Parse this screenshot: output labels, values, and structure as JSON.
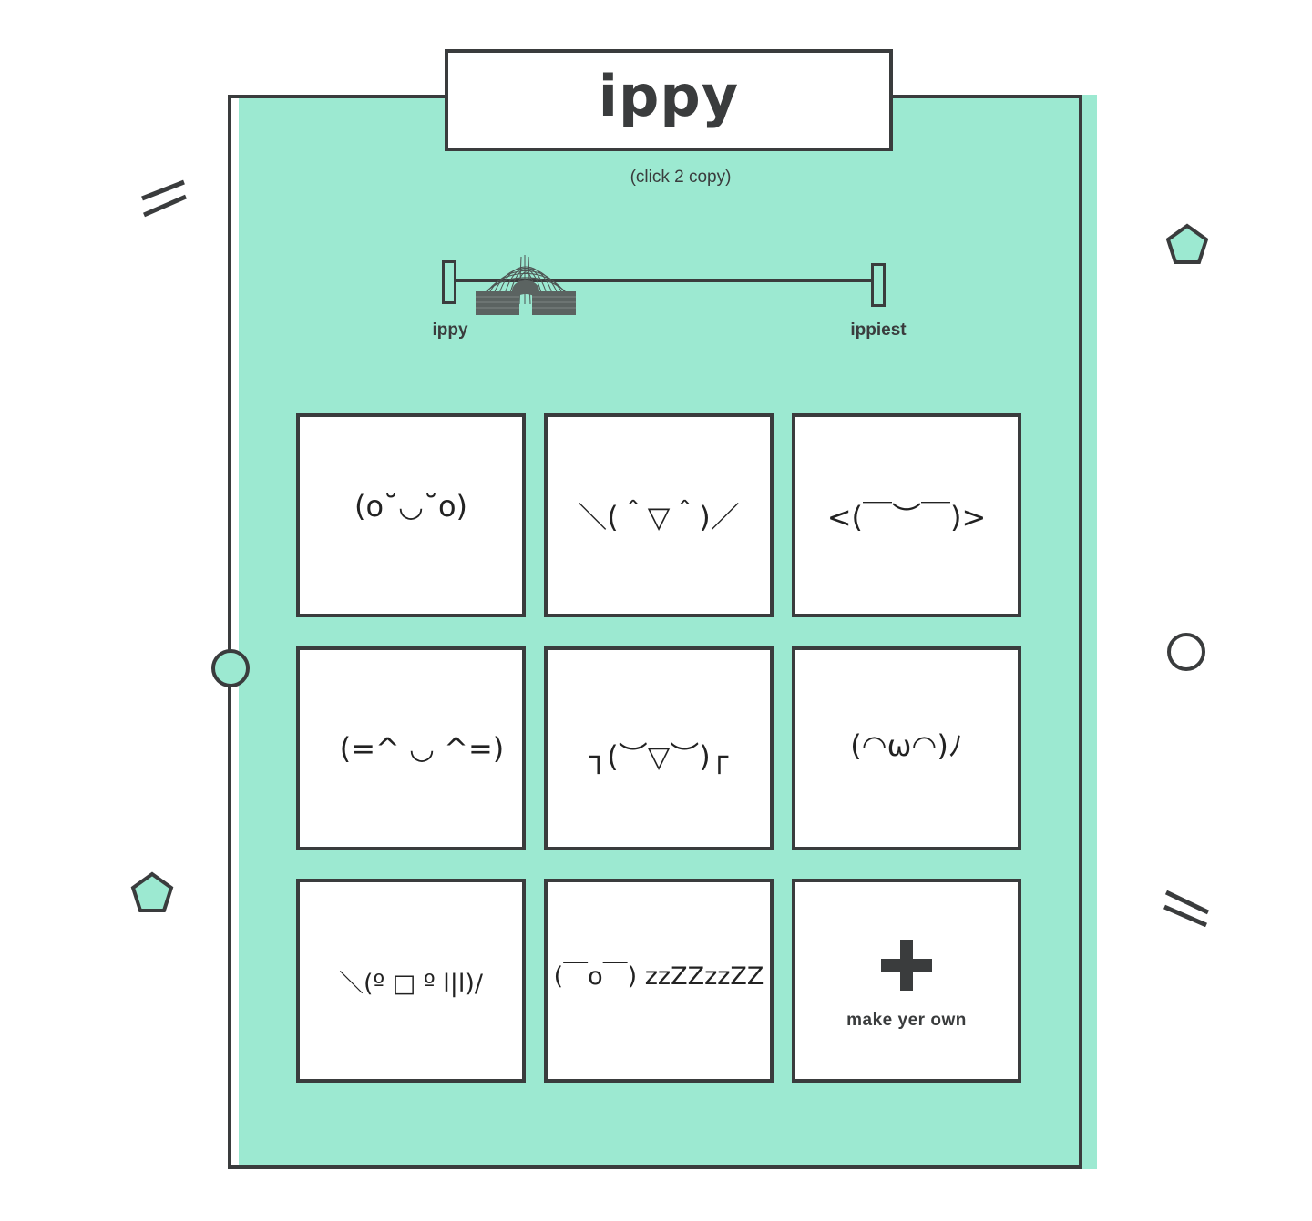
{
  "app": {
    "title": "ippy",
    "subtitle": "(click 2 copy)"
  },
  "slider": {
    "min_label": "ippy",
    "max_label": "ippiest",
    "value_fraction": 0.0
  },
  "faces": [
    "(o˘◡˘o)",
    "＼(＾▽＾)／",
    "<(￣︶￣)>",
    "(=^ ◡ ^=)",
    "┐(︶▽︶)┌",
    "(◠ω◠)ﾉ",
    "＼(º □ º l|l)/",
    "(￣o￣) zzZZzzZZ"
  ],
  "make_own": {
    "label": "make yer own"
  },
  "colors": {
    "panel": "#9ce9d1",
    "ink": "#3a3c3d",
    "card": "#ffffff"
  },
  "icons": [
    "slinky-icon",
    "plus-icon",
    "pentagon-icon",
    "circle-icon",
    "double-slash-icon"
  ]
}
